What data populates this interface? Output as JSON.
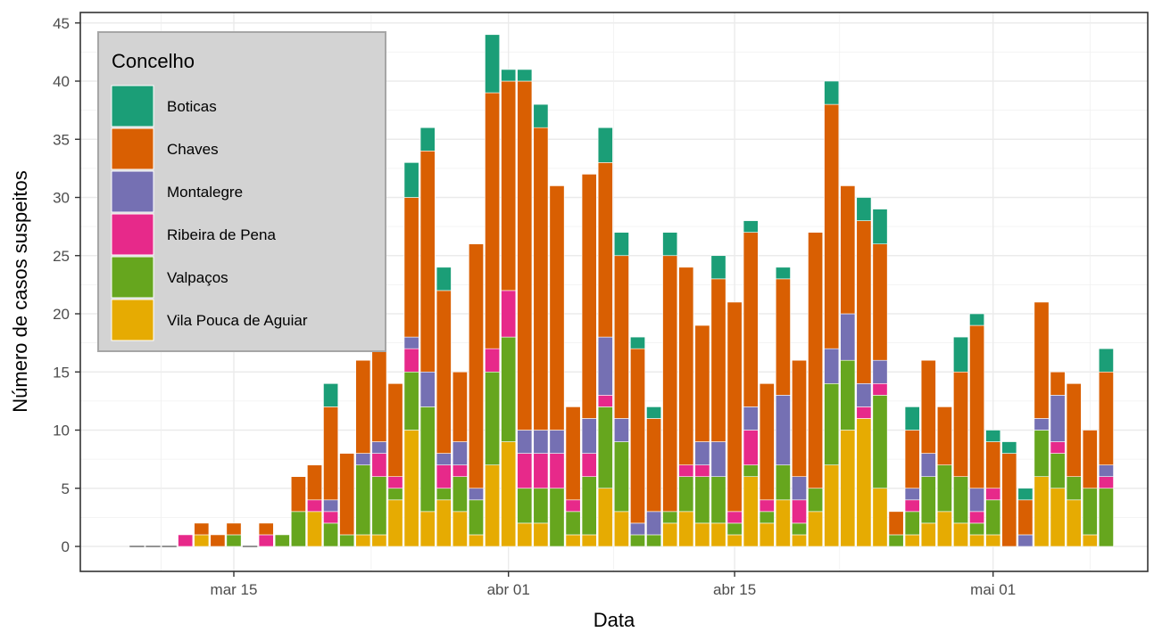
{
  "chart_data": {
    "type": "bar",
    "stacked": true,
    "xlabel": "Data",
    "ylabel": "Número de casos suspeitos",
    "ylim": [
      0,
      45
    ],
    "y_ticks": [
      0,
      5,
      10,
      15,
      20,
      25,
      30,
      35,
      40,
      45
    ],
    "x_ticks": [
      {
        "label": "mar 15",
        "date": "2020-03-15"
      },
      {
        "label": "abr 01",
        "date": "2020-04-01"
      },
      {
        "label": "abr 15",
        "date": "2020-04-15"
      },
      {
        "label": "mai 01",
        "date": "2020-05-01"
      }
    ],
    "grid": true,
    "legend": {
      "title": "Concelho",
      "position": "top-left",
      "background": "#d3d3d3"
    },
    "series": [
      {
        "name": "Boticas",
        "color": "#1b9e77"
      },
      {
        "name": "Chaves",
        "color": "#d95f02"
      },
      {
        "name": "Montalegre",
        "color": "#7570b3"
      },
      {
        "name": "Ribeira de Pena",
        "color": "#e7298a"
      },
      {
        "name": "Valpaços",
        "color": "#66a61e"
      },
      {
        "name": "Vila Pouca de Aguiar",
        "color": "#e6ab02"
      }
    ],
    "stack_order": [
      "Vila Pouca de Aguiar",
      "Valpaços",
      "Ribeira de Pena",
      "Montalegre",
      "Chaves",
      "Boticas"
    ],
    "bars": [
      {
        "date": "2020-03-09",
        "values": {}
      },
      {
        "date": "2020-03-10",
        "values": {}
      },
      {
        "date": "2020-03-11",
        "values": {}
      },
      {
        "date": "2020-03-12",
        "values": {
          "Ribeira de Pena": 1
        }
      },
      {
        "date": "2020-03-13",
        "values": {
          "Vila Pouca de Aguiar": 1,
          "Chaves": 1
        }
      },
      {
        "date": "2020-03-14",
        "values": {
          "Chaves": 1
        }
      },
      {
        "date": "2020-03-15",
        "values": {
          "Valpaços": 1,
          "Chaves": 1
        }
      },
      {
        "date": "2020-03-16",
        "values": {}
      },
      {
        "date": "2020-03-17",
        "values": {
          "Ribeira de Pena": 1,
          "Chaves": 1
        }
      },
      {
        "date": "2020-03-18",
        "values": {
          "Valpaços": 1
        }
      },
      {
        "date": "2020-03-19",
        "values": {
          "Valpaços": 3,
          "Chaves": 3
        }
      },
      {
        "date": "2020-03-20",
        "values": {
          "Vila Pouca de Aguiar": 3,
          "Ribeira de Pena": 1,
          "Chaves": 3
        }
      },
      {
        "date": "2020-03-21",
        "values": {
          "Valpaços": 2,
          "Ribeira de Pena": 1,
          "Montalegre": 1,
          "Chaves": 8,
          "Boticas": 2
        }
      },
      {
        "date": "2020-03-22",
        "values": {
          "Valpaços": 1,
          "Chaves": 7
        }
      },
      {
        "date": "2020-03-23",
        "values": {
          "Vila Pouca de Aguiar": 1,
          "Valpaços": 6,
          "Montalegre": 1,
          "Chaves": 8
        }
      },
      {
        "date": "2020-03-24",
        "values": {
          "Vila Pouca de Aguiar": 1,
          "Valpaços": 5,
          "Ribeira de Pena": 2,
          "Montalegre": 1,
          "Chaves": 8
        }
      },
      {
        "date": "2020-03-25",
        "values": {
          "Vila Pouca de Aguiar": 4,
          "Valpaços": 1,
          "Ribeira de Pena": 1,
          "Chaves": 8
        }
      },
      {
        "date": "2020-03-26",
        "values": {
          "Vila Pouca de Aguiar": 10,
          "Valpaços": 5,
          "Ribeira de Pena": 2,
          "Montalegre": 1,
          "Chaves": 12,
          "Boticas": 3
        }
      },
      {
        "date": "2020-03-27",
        "values": {
          "Vila Pouca de Aguiar": 3,
          "Valpaços": 9,
          "Montalegre": 3,
          "Chaves": 19,
          "Boticas": 2
        }
      },
      {
        "date": "2020-03-28",
        "values": {
          "Vila Pouca de Aguiar": 4,
          "Valpaços": 1,
          "Ribeira de Pena": 2,
          "Montalegre": 1,
          "Chaves": 14,
          "Boticas": 2
        }
      },
      {
        "date": "2020-03-29",
        "values": {
          "Vila Pouca de Aguiar": 3,
          "Valpaços": 3,
          "Ribeira de Pena": 1,
          "Montalegre": 2,
          "Chaves": 6
        }
      },
      {
        "date": "2020-03-30",
        "values": {
          "Vila Pouca de Aguiar": 1,
          "Valpaços": 3,
          "Montalegre": 1,
          "Chaves": 21
        }
      },
      {
        "date": "2020-03-31",
        "values": {
          "Vila Pouca de Aguiar": 7,
          "Valpaços": 8,
          "Ribeira de Pena": 2,
          "Chaves": 22,
          "Boticas": 5
        }
      },
      {
        "date": "2020-04-01",
        "values": {
          "Vila Pouca de Aguiar": 9,
          "Valpaços": 9,
          "Ribeira de Pena": 4,
          "Chaves": 18,
          "Boticas": 1
        }
      },
      {
        "date": "2020-04-02",
        "values": {
          "Vila Pouca de Aguiar": 2,
          "Valpaços": 3,
          "Ribeira de Pena": 3,
          "Montalegre": 2,
          "Chaves": 30,
          "Boticas": 1
        }
      },
      {
        "date": "2020-04-03",
        "values": {
          "Vila Pouca de Aguiar": 2,
          "Valpaços": 3,
          "Ribeira de Pena": 3,
          "Montalegre": 2,
          "Chaves": 26,
          "Boticas": 2
        }
      },
      {
        "date": "2020-04-04",
        "values": {
          "Valpaços": 5,
          "Ribeira de Pena": 3,
          "Montalegre": 2,
          "Chaves": 21
        }
      },
      {
        "date": "2020-04-05",
        "values": {
          "Vila Pouca de Aguiar": 1,
          "Valpaços": 2,
          "Ribeira de Pena": 1,
          "Chaves": 8
        }
      },
      {
        "date": "2020-04-06",
        "values": {
          "Vila Pouca de Aguiar": 1,
          "Valpaços": 5,
          "Ribeira de Pena": 2,
          "Montalegre": 3,
          "Chaves": 21
        }
      },
      {
        "date": "2020-04-07",
        "values": {
          "Vila Pouca de Aguiar": 5,
          "Valpaços": 7,
          "Ribeira de Pena": 1,
          "Montalegre": 5,
          "Chaves": 15,
          "Boticas": 3
        }
      },
      {
        "date": "2020-04-08",
        "values": {
          "Vila Pouca de Aguiar": 3,
          "Valpaços": 6,
          "Montalegre": 2,
          "Chaves": 14,
          "Boticas": 2
        }
      },
      {
        "date": "2020-04-09",
        "values": {
          "Valpaços": 1,
          "Montalegre": 1,
          "Chaves": 15,
          "Boticas": 1
        }
      },
      {
        "date": "2020-04-10",
        "values": {
          "Valpaços": 1,
          "Montalegre": 2,
          "Chaves": 8,
          "Boticas": 1
        }
      },
      {
        "date": "2020-04-11",
        "values": {
          "Vila Pouca de Aguiar": 2,
          "Valpaços": 1,
          "Chaves": 22,
          "Boticas": 2
        }
      },
      {
        "date": "2020-04-12",
        "values": {
          "Vila Pouca de Aguiar": 3,
          "Valpaços": 3,
          "Ribeira de Pena": 1,
          "Chaves": 17
        }
      },
      {
        "date": "2020-04-13",
        "values": {
          "Vila Pouca de Aguiar": 2,
          "Valpaços": 4,
          "Ribeira de Pena": 1,
          "Montalegre": 2,
          "Chaves": 10
        }
      },
      {
        "date": "2020-04-14",
        "values": {
          "Vila Pouca de Aguiar": 2,
          "Valpaços": 4,
          "Montalegre": 3,
          "Chaves": 14,
          "Boticas": 2
        }
      },
      {
        "date": "2020-04-15",
        "values": {
          "Vila Pouca de Aguiar": 1,
          "Valpaços": 1,
          "Ribeira de Pena": 1,
          "Chaves": 18
        }
      },
      {
        "date": "2020-04-16",
        "values": {
          "Vila Pouca de Aguiar": 6,
          "Valpaços": 1,
          "Ribeira de Pena": 3,
          "Montalegre": 2,
          "Chaves": 15,
          "Boticas": 1
        }
      },
      {
        "date": "2020-04-17",
        "values": {
          "Vila Pouca de Aguiar": 2,
          "Valpaços": 1,
          "Ribeira de Pena": 1,
          "Chaves": 10
        }
      },
      {
        "date": "2020-04-18",
        "values": {
          "Vila Pouca de Aguiar": 4,
          "Valpaços": 3,
          "Montalegre": 6,
          "Chaves": 10,
          "Boticas": 1
        }
      },
      {
        "date": "2020-04-19",
        "values": {
          "Vila Pouca de Aguiar": 1,
          "Valpaços": 1,
          "Ribeira de Pena": 2,
          "Montalegre": 2,
          "Chaves": 10
        }
      },
      {
        "date": "2020-04-20",
        "values": {
          "Vila Pouca de Aguiar": 3,
          "Valpaços": 2,
          "Chaves": 22
        }
      },
      {
        "date": "2020-04-21",
        "values": {
          "Vila Pouca de Aguiar": 7,
          "Valpaços": 7,
          "Montalegre": 3,
          "Chaves": 21,
          "Boticas": 2
        }
      },
      {
        "date": "2020-04-22",
        "values": {
          "Vila Pouca de Aguiar": 10,
          "Valpaços": 6,
          "Montalegre": 4,
          "Chaves": 11
        }
      },
      {
        "date": "2020-04-23",
        "values": {
          "Vila Pouca de Aguiar": 11,
          "Ribeira de Pena": 1,
          "Montalegre": 2,
          "Chaves": 14,
          "Boticas": 2
        }
      },
      {
        "date": "2020-04-24",
        "values": {
          "Vila Pouca de Aguiar": 5,
          "Valpaços": 8,
          "Ribeira de Pena": 1,
          "Montalegre": 2,
          "Chaves": 10,
          "Boticas": 3
        }
      },
      {
        "date": "2020-04-25",
        "values": {
          "Valpaços": 1,
          "Chaves": 2
        }
      },
      {
        "date": "2020-04-26",
        "values": {
          "Vila Pouca de Aguiar": 1,
          "Valpaços": 2,
          "Ribeira de Pena": 1,
          "Montalegre": 1,
          "Chaves": 5,
          "Boticas": 2
        }
      },
      {
        "date": "2020-04-27",
        "values": {
          "Vila Pouca de Aguiar": 2,
          "Valpaços": 4,
          "Montalegre": 2,
          "Chaves": 8
        }
      },
      {
        "date": "2020-04-28",
        "values": {
          "Vila Pouca de Aguiar": 3,
          "Valpaços": 4,
          "Chaves": 5
        }
      },
      {
        "date": "2020-04-29",
        "values": {
          "Vila Pouca de Aguiar": 2,
          "Valpaços": 4,
          "Chaves": 9,
          "Boticas": 3
        }
      },
      {
        "date": "2020-04-30",
        "values": {
          "Vila Pouca de Aguiar": 1,
          "Valpaços": 1,
          "Ribeira de Pena": 1,
          "Montalegre": 2,
          "Chaves": 14,
          "Boticas": 1
        }
      },
      {
        "date": "2020-05-01",
        "values": {
          "Vila Pouca de Aguiar": 1,
          "Valpaços": 3,
          "Ribeira de Pena": 1,
          "Chaves": 4,
          "Boticas": 1
        }
      },
      {
        "date": "2020-05-02",
        "values": {
          "Chaves": 8,
          "Boticas": 1
        }
      },
      {
        "date": "2020-05-03",
        "values": {
          "Montalegre": 1,
          "Chaves": 3,
          "Boticas": 1
        }
      },
      {
        "date": "2020-05-04",
        "values": {
          "Vila Pouca de Aguiar": 6,
          "Valpaços": 4,
          "Montalegre": 1,
          "Chaves": 10
        }
      },
      {
        "date": "2020-05-05",
        "values": {
          "Vila Pouca de Aguiar": 5,
          "Valpaços": 3,
          "Ribeira de Pena": 1,
          "Montalegre": 4,
          "Chaves": 2
        }
      },
      {
        "date": "2020-05-06",
        "values": {
          "Vila Pouca de Aguiar": 4,
          "Valpaços": 2,
          "Chaves": 8
        }
      },
      {
        "date": "2020-05-07",
        "values": {
          "Vila Pouca de Aguiar": 1,
          "Valpaços": 4,
          "Chaves": 5
        }
      },
      {
        "date": "2020-05-08",
        "values": {
          "Valpaços": 5,
          "Ribeira de Pena": 1,
          "Montalegre": 1,
          "Chaves": 8,
          "Boticas": 2
        }
      }
    ]
  }
}
